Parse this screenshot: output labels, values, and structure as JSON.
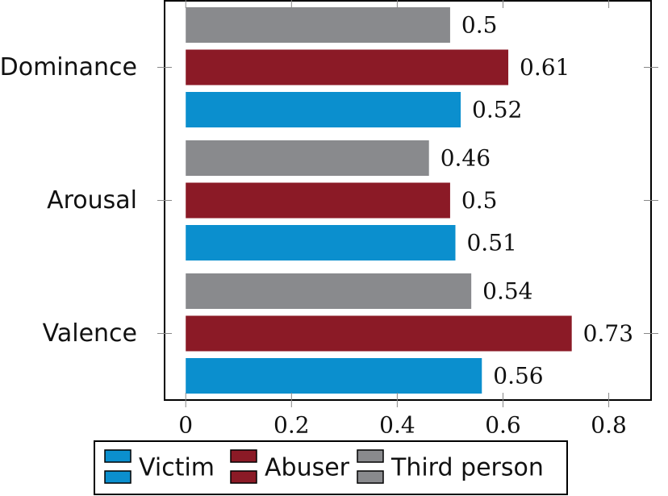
{
  "chart_data": {
    "type": "bar",
    "orientation": "horizontal",
    "categories": [
      "Valence",
      "Arousal",
      "Dominance"
    ],
    "series": [
      {
        "name": "Victim",
        "color": "#0b8fce",
        "values": [
          0.56,
          0.51,
          0.52
        ]
      },
      {
        "name": "Abuser",
        "color": "#8b1a26",
        "values": [
          0.73,
          0.5,
          0.61
        ]
      },
      {
        "name": "Third person",
        "color": "#898a8d",
        "values": [
          0.54,
          0.46,
          0.5
        ]
      }
    ],
    "value_labels": {
      "Victim": [
        "0.56",
        "0.51",
        "0.52"
      ],
      "Abuser": [
        "0.73",
        "0.5",
        "0.61"
      ],
      "Third person": [
        "0.54",
        "0.46",
        "0.5"
      ]
    },
    "xticks": [
      "0",
      "0.2",
      "0.4",
      "0.6",
      "0.8"
    ],
    "xtick_values": [
      0,
      0.2,
      0.4,
      0.6,
      0.8
    ],
    "xlim": [
      -0.04,
      0.88
    ],
    "legend": {
      "position": "bottom",
      "entries": [
        "Victim",
        "Abuser",
        "Third person"
      ]
    },
    "grid": false,
    "title": "",
    "xlabel": "",
    "ylabel": ""
  }
}
